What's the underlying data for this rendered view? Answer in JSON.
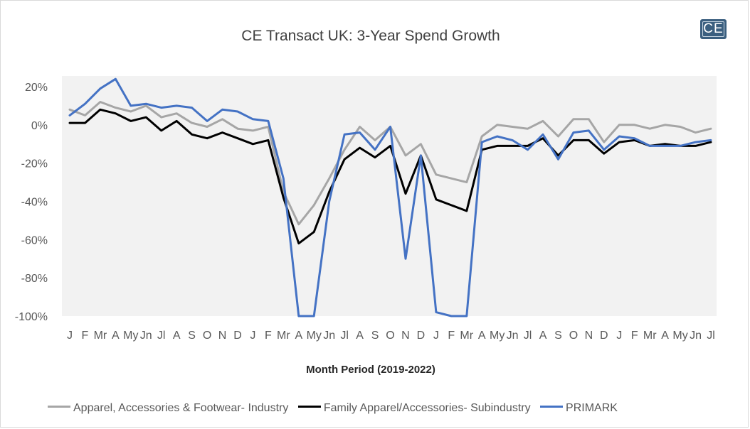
{
  "chart_data": {
    "type": "line",
    "title": "CE Transact UK: 3-Year Spend Growth",
    "xlabel": "Month Period (2019-2022)",
    "ylabel": "",
    "ylim": [
      -100,
      20
    ],
    "yticks": [
      "20%",
      "0%",
      "-20%",
      "-40%",
      "-60%",
      "-80%",
      "-100%"
    ],
    "ytick_values": [
      20,
      0,
      -20,
      -40,
      -60,
      -80,
      -100
    ],
    "grid": false,
    "legend_position": "bottom",
    "categories": [
      "J",
      "F",
      "Mr",
      "A",
      "My",
      "Jn",
      "Jl",
      "A",
      "S",
      "O",
      "N",
      "D",
      "J",
      "F",
      "Mr",
      "A",
      "My",
      "Jn",
      "Jl",
      "A",
      "S",
      "O",
      "N",
      "D",
      "J",
      "F",
      "Mr",
      "A",
      "My",
      "Jn",
      "Jl",
      "A",
      "S",
      "O",
      "N",
      "D",
      "J",
      "F",
      "Mr",
      "A",
      "My",
      "Jn",
      "Jl"
    ],
    "series": [
      {
        "name": "Apparel, Accessories & Footwear- Industry",
        "color": "#a6a6a6",
        "values": [
          8,
          5,
          12,
          9,
          7,
          10,
          4,
          6,
          1,
          -1,
          3,
          -2,
          -3,
          -1,
          -35,
          -52,
          -42,
          -28,
          -13,
          -1,
          -8,
          -1,
          -16,
          -10,
          -26,
          -28,
          -30,
          -6,
          0,
          -1,
          -2,
          2,
          -6,
          3,
          3,
          -9,
          0,
          0,
          -2,
          0,
          -1,
          -4,
          -2
        ]
      },
      {
        "name": "Family Apparel/Accessories- Subindustry",
        "color": "#000000",
        "values": [
          1,
          1,
          8,
          6,
          2,
          4,
          -3,
          2,
          -5,
          -7,
          -4,
          -7,
          -10,
          -8,
          -38,
          -62,
          -56,
          -35,
          -18,
          -12,
          -17,
          -11,
          -36,
          -16,
          -39,
          -42,
          -45,
          -13,
          -11,
          -11,
          -11,
          -7,
          -16,
          -8,
          -8,
          -15,
          -9,
          -8,
          -11,
          -10,
          -11,
          -11,
          -9
        ]
      },
      {
        "name": "PRIMARK",
        "color": "#4472c4",
        "values": [
          5,
          11,
          19,
          24,
          10,
          11,
          9,
          10,
          9,
          2,
          8,
          7,
          3,
          2,
          -28,
          -100,
          -100,
          -40,
          -5,
          -4,
          -13,
          -1,
          -70,
          -16,
          -98,
          -100,
          -100,
          -9,
          -6,
          -8,
          -13,
          -5,
          -18,
          -4,
          -3,
          -13,
          -6,
          -7,
          -11,
          -11,
          -11,
          -9,
          -8
        ]
      }
    ]
  },
  "branding": {
    "logo_text": "CE"
  }
}
